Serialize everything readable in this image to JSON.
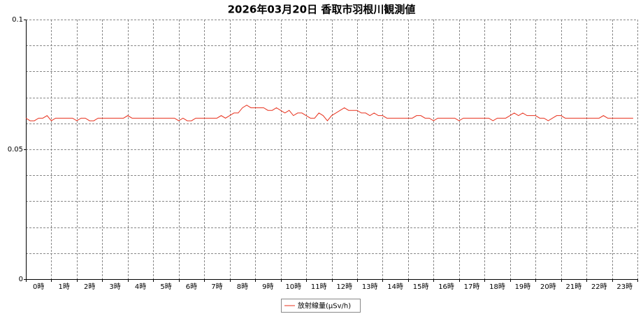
{
  "chart_data": {
    "type": "line",
    "title": "2026年03月20日 香取市羽根川観測値",
    "x": [
      0,
      10,
      20,
      30,
      40,
      50,
      60,
      70,
      80,
      90,
      100,
      110,
      120,
      130,
      140,
      150,
      160,
      170,
      180,
      190,
      200,
      210,
      220,
      230,
      240,
      250,
      260,
      270,
      280,
      290,
      300,
      310,
      320,
      330,
      340,
      350,
      360,
      370,
      380,
      390,
      400,
      410,
      420,
      430,
      440,
      450,
      460,
      470,
      480,
      490,
      500,
      510,
      520,
      530,
      540,
      550,
      560,
      570,
      580,
      590,
      600,
      610,
      620,
      630,
      640,
      650,
      660,
      670,
      680,
      690,
      700,
      710,
      720,
      730,
      740,
      750,
      760,
      770,
      780,
      790,
      800,
      810,
      820,
      830,
      840,
      850,
      860,
      870,
      880,
      890,
      900,
      910,
      920,
      930,
      940,
      950,
      960,
      970,
      980,
      990,
      1000,
      1010,
      1020,
      1030,
      1040,
      1050,
      1060,
      1070,
      1080,
      1090,
      1100,
      1110,
      1120,
      1130,
      1140,
      1150,
      1160,
      1170,
      1180,
      1190,
      1200,
      1210,
      1220,
      1230,
      1240,
      1250,
      1260,
      1270,
      1280,
      1290,
      1300,
      1310,
      1320,
      1330,
      1340,
      1350,
      1360,
      1370,
      1380,
      1390,
      1400,
      1410,
      1420,
      1430
    ],
    "series": [
      {
        "name": "放射線量(μSv/h)",
        "color": "#e8321e",
        "values": [
          0.062,
          0.061,
          0.061,
          0.062,
          0.062,
          0.063,
          0.061,
          0.062,
          0.062,
          0.062,
          0.062,
          0.062,
          0.061,
          0.062,
          0.062,
          0.061,
          0.061,
          0.062,
          0.062,
          0.062,
          0.062,
          0.062,
          0.062,
          0.062,
          0.063,
          0.062,
          0.062,
          0.062,
          0.062,
          0.062,
          0.062,
          0.062,
          0.062,
          0.062,
          0.062,
          0.062,
          0.061,
          0.062,
          0.061,
          0.061,
          0.062,
          0.062,
          0.062,
          0.062,
          0.062,
          0.062,
          0.063,
          0.062,
          0.063,
          0.064,
          0.064,
          0.066,
          0.067,
          0.066,
          0.066,
          0.066,
          0.066,
          0.065,
          0.065,
          0.066,
          0.065,
          0.064,
          0.065,
          0.063,
          0.064,
          0.064,
          0.063,
          0.062,
          0.062,
          0.064,
          0.063,
          0.061,
          0.063,
          0.064,
          0.065,
          0.066,
          0.065,
          0.065,
          0.065,
          0.064,
          0.064,
          0.063,
          0.064,
          0.063,
          0.063,
          0.062,
          0.062,
          0.062,
          0.062,
          0.062,
          0.062,
          0.062,
          0.063,
          0.063,
          0.062,
          0.062,
          0.061,
          0.062,
          0.062,
          0.062,
          0.062,
          0.062,
          0.061,
          0.062,
          0.062,
          0.062,
          0.062,
          0.062,
          0.062,
          0.062,
          0.061,
          0.062,
          0.062,
          0.062,
          0.063,
          0.064,
          0.063,
          0.064,
          0.063,
          0.063,
          0.063,
          0.062,
          0.062,
          0.061,
          0.062,
          0.063,
          0.063,
          0.062,
          0.062,
          0.062,
          0.062,
          0.062,
          0.062,
          0.062,
          0.062,
          0.062,
          0.063,
          0.062,
          0.062,
          0.062,
          0.062,
          0.062,
          0.062,
          0.062
        ]
      }
    ],
    "xlim": [
      0,
      1440
    ],
    "xticks": [
      {
        "value": 30,
        "label": "0時"
      },
      {
        "value": 90,
        "label": "1時"
      },
      {
        "value": 150,
        "label": "2時"
      },
      {
        "value": 210,
        "label": "3時"
      },
      {
        "value": 270,
        "label": "4時"
      },
      {
        "value": 330,
        "label": "5時"
      },
      {
        "value": 390,
        "label": "6時"
      },
      {
        "value": 450,
        "label": "7時"
      },
      {
        "value": 510,
        "label": "8時"
      },
      {
        "value": 570,
        "label": "9時"
      },
      {
        "value": 630,
        "label": "10時"
      },
      {
        "value": 690,
        "label": "11時"
      },
      {
        "value": 750,
        "label": "12時"
      },
      {
        "value": 810,
        "label": "13時"
      },
      {
        "value": 870,
        "label": "14時"
      },
      {
        "value": 930,
        "label": "15時"
      },
      {
        "value": 990,
        "label": "16時"
      },
      {
        "value": 1050,
        "label": "17時"
      },
      {
        "value": 1110,
        "label": "18時"
      },
      {
        "value": 1170,
        "label": "19時"
      },
      {
        "value": 1230,
        "label": "20時"
      },
      {
        "value": 1290,
        "label": "21時"
      },
      {
        "value": 1350,
        "label": "22時"
      },
      {
        "value": 1410,
        "label": "23時"
      }
    ],
    "xminorticks": [
      0,
      60,
      120,
      180,
      240,
      300,
      360,
      420,
      480,
      540,
      600,
      660,
      720,
      780,
      840,
      900,
      960,
      1020,
      1080,
      1140,
      1200,
      1260,
      1320,
      1380,
      1440
    ],
    "ylim": [
      0,
      0.1
    ],
    "yticks": [
      0,
      0.05,
      0.1
    ],
    "yminorticks": [
      0.01,
      0.02,
      0.03,
      0.04,
      0.05,
      0.06,
      0.07,
      0.08,
      0.09,
      0.1
    ],
    "grid": true,
    "legend": "bottom"
  }
}
